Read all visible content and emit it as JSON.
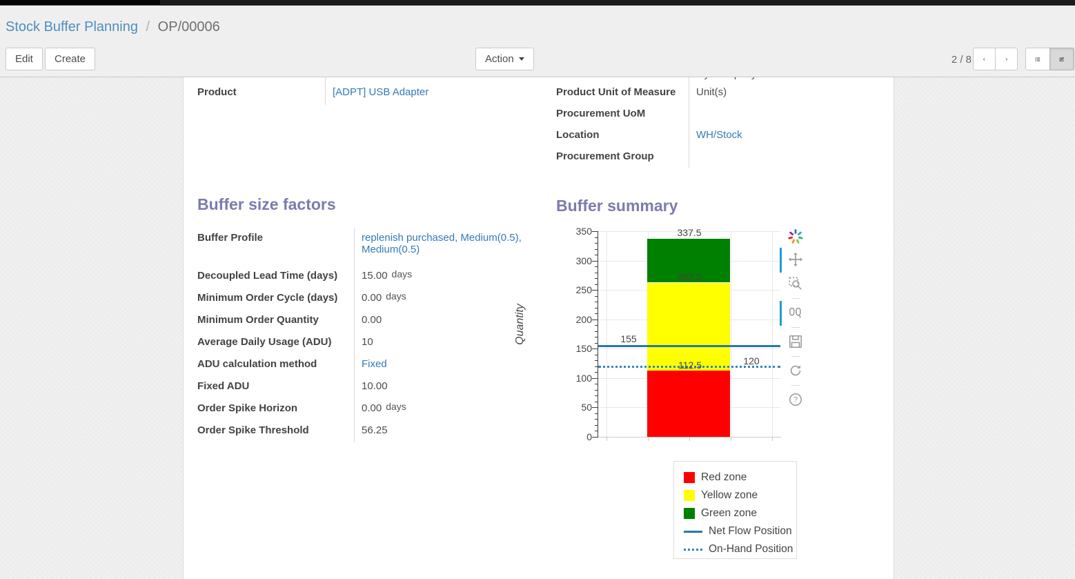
{
  "breadcrumb": {
    "parent": "Stock Buffer Planning",
    "separator": "/",
    "current": "OP/00006"
  },
  "control_panel": {
    "edit_label": "Edit",
    "create_label": "Create",
    "action_label": "Action",
    "pager": "2 / 8",
    "view_switcher": [
      "list",
      "form"
    ],
    "active_view": "form"
  },
  "form": {
    "clipped_value": "My Company",
    "left_group": {
      "fields": [
        {
          "label": "Product",
          "value": "[ADPT] USB Adapter",
          "link": true
        }
      ]
    },
    "right_group": {
      "fields": [
        {
          "label": "Product Unit of Measure",
          "value": "Unit(s)"
        },
        {
          "label": "Procurement UoM",
          "value": ""
        },
        {
          "label": "Location",
          "value": "WH/Stock",
          "link": true
        },
        {
          "label": "Procurement Group",
          "value": ""
        }
      ]
    },
    "buffer_factors": {
      "title": "Buffer size factors",
      "fields": [
        {
          "label": "Buffer Profile",
          "value": "replenish purchased, Medium(0.5), Medium(0.5)",
          "link": true
        },
        {
          "label": "Decoupled Lead Time (days)",
          "value": "15.00",
          "suffix": "days"
        },
        {
          "label": "Minimum Order Cycle (days)",
          "value": "0.00",
          "suffix": "days"
        },
        {
          "label": "Minimum Order Quantity",
          "value": "0.00"
        },
        {
          "label": "Average Daily Usage (ADU)",
          "value": "10"
        },
        {
          "label": "ADU calculation method",
          "value": "Fixed",
          "link": true
        },
        {
          "label": "Fixed ADU",
          "value": "10.00"
        },
        {
          "label": "Order Spike Horizon",
          "value": "0.00",
          "suffix": "days"
        },
        {
          "label": "Order Spike Threshold",
          "value": "56.25"
        }
      ]
    },
    "buffer_summary_title": "Buffer summary"
  },
  "chart_data": {
    "type": "bar",
    "title": "Buffer summary",
    "ylabel": "Quantity",
    "xlabel": "",
    "ylim": [
      0,
      350
    ],
    "yticks": [
      0,
      50,
      100,
      150,
      200,
      250,
      300,
      350
    ],
    "minor_tick_step": 10,
    "grid": true,
    "zones": [
      {
        "name": "Red zone",
        "from": 0,
        "to": 112.5,
        "color": "#ff0000"
      },
      {
        "name": "Yellow zone",
        "from": 112.5,
        "to": 262.5,
        "color": "#ffff00"
      },
      {
        "name": "Green zone",
        "from": 262.5,
        "to": 337.5,
        "color": "#008000"
      }
    ],
    "lines": [
      {
        "name": "Net Flow Position",
        "value": 155,
        "style": "solid",
        "color": "#2577b2"
      },
      {
        "name": "On-Hand Position",
        "value": 120,
        "style": "dotted",
        "color": "#2e86c1"
      }
    ],
    "annotations": [
      {
        "text": "337.5",
        "v": 337.5,
        "x": 132,
        "dy": -17
      },
      {
        "text": "262.5",
        "v": 262.5,
        "x": 132,
        "dy": -17
      },
      {
        "text": "112.5",
        "v": 112.5,
        "x": 133,
        "dy": -16
      },
      {
        "text": "155",
        "v": 155,
        "x": 44,
        "dy": -18
      },
      {
        "text": "120",
        "v": 120,
        "x": 222,
        "dy": -16
      }
    ],
    "legend": {
      "position": "below-right",
      "entries": [
        {
          "label": "Red zone",
          "swatch": "square",
          "color": "#ff0000"
        },
        {
          "label": "Yellow zone",
          "swatch": "square",
          "color": "#ffff00"
        },
        {
          "label": "Green zone",
          "swatch": "square",
          "color": "#008000"
        },
        {
          "label": "Net Flow Position",
          "swatch": "line",
          "color": "#2577b2"
        },
        {
          "label": "On-Hand Position",
          "swatch": "dots",
          "color": "#2e86c1"
        }
      ]
    },
    "toolbar_icons": [
      {
        "name": "plotly-logo-icon",
        "active": false
      },
      {
        "name": "pan-icon",
        "active": true
      },
      {
        "name": "box-zoom-icon",
        "active": false
      },
      {
        "name": "compare-hover-icon",
        "active": true
      },
      {
        "name": "save-icon",
        "active": false
      },
      {
        "name": "reset-icon",
        "active": false
      },
      {
        "name": "help-icon",
        "active": false
      }
    ]
  }
}
